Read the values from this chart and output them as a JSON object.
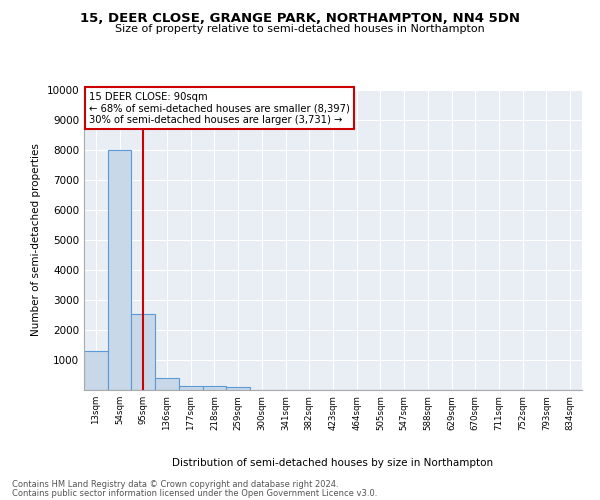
{
  "title1": "15, DEER CLOSE, GRANGE PARK, NORTHAMPTON, NN4 5DN",
  "title2": "Size of property relative to semi-detached houses in Northampton",
  "xlabel": "Distribution of semi-detached houses by size in Northampton",
  "ylabel": "Number of semi-detached properties",
  "footer1": "Contains HM Land Registry data © Crown copyright and database right 2024.",
  "footer2": "Contains public sector information licensed under the Open Government Licence v3.0.",
  "annotation_title": "15 DEER CLOSE: 90sqm",
  "annotation_line1": "← 68% of semi-detached houses are smaller (8,397)",
  "annotation_line2": "30% of semi-detached houses are larger (3,731) →",
  "property_size": 90,
  "bar_color": "#c8d8e8",
  "bar_edge_color": "#5b9bd5",
  "vline_color": "#cc0000",
  "annotation_box_color": "#cc0000",
  "background_color": "#e8eef4",
  "categories": [
    "13sqm",
    "54sqm",
    "95sqm",
    "136sqm",
    "177sqm",
    "218sqm",
    "259sqm",
    "300sqm",
    "341sqm",
    "382sqm",
    "423sqm",
    "464sqm",
    "505sqm",
    "547sqm",
    "588sqm",
    "629sqm",
    "670sqm",
    "711sqm",
    "752sqm",
    "793sqm",
    "834sqm"
  ],
  "values": [
    1300,
    8000,
    2550,
    400,
    150,
    120,
    100,
    0,
    0,
    0,
    0,
    0,
    0,
    0,
    0,
    0,
    0,
    0,
    0,
    0,
    0
  ],
  "ylim": [
    0,
    10000
  ],
  "yticks": [
    0,
    1000,
    2000,
    3000,
    4000,
    5000,
    6000,
    7000,
    8000,
    9000,
    10000
  ],
  "vline_x": 2.0,
  "figsize": [
    6.0,
    5.0
  ],
  "dpi": 100
}
